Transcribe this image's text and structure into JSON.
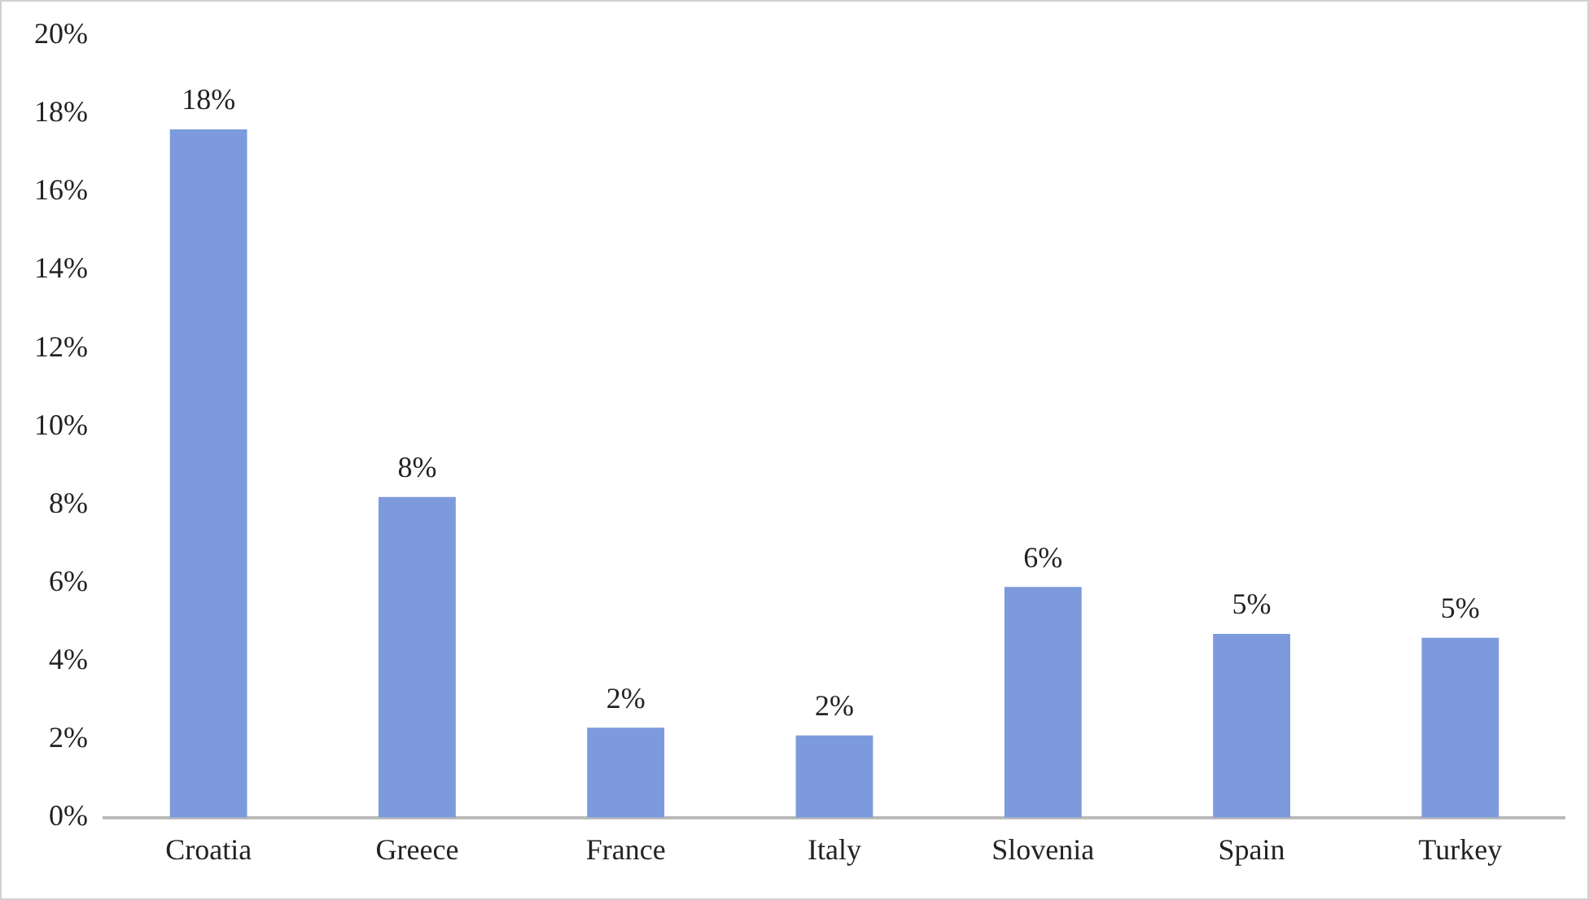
{
  "chart_data": {
    "type": "bar",
    "categories": [
      "Croatia",
      "Greece",
      "France",
      "Italy",
      "Slovenia",
      "Spain",
      "Turkey"
    ],
    "values": [
      17.6,
      8.2,
      2.3,
      2.1,
      5.9,
      4.7,
      4.6
    ],
    "value_labels": [
      "18%",
      "8%",
      "2%",
      "2%",
      "6%",
      "5%",
      "5%"
    ],
    "color": "#7d9bdc",
    "ylim": [
      0,
      20
    ],
    "yticks": [
      {
        "value": 0,
        "label": "0%"
      },
      {
        "value": 2,
        "label": "2%"
      },
      {
        "value": 4,
        "label": "4%"
      },
      {
        "value": 6,
        "label": "6%"
      },
      {
        "value": 8,
        "label": "8%"
      },
      {
        "value": 10,
        "label": "10%"
      },
      {
        "value": 12,
        "label": "12%"
      },
      {
        "value": 14,
        "label": "14%"
      },
      {
        "value": 16,
        "label": "16%"
      },
      {
        "value": 18,
        "label": "18%"
      },
      {
        "value": 20,
        "label": "20%"
      }
    ],
    "grid": false,
    "legend": false
  }
}
